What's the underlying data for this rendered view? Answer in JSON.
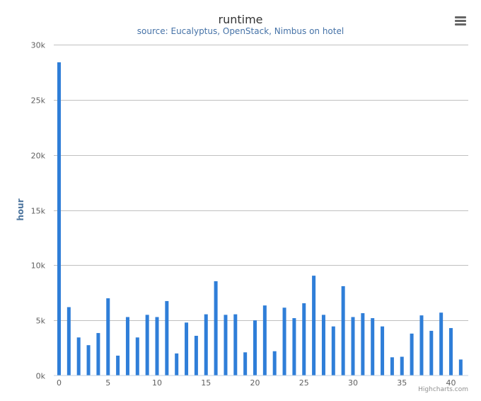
{
  "chart_data": {
    "type": "bar",
    "title": "runtime",
    "subtitle": "source: Eucalyptus, OpenStack, Nimbus on hotel",
    "xlabel": "",
    "ylabel": "hour",
    "x": [
      0,
      1,
      2,
      3,
      4,
      5,
      6,
      7,
      8,
      9,
      10,
      11,
      12,
      13,
      14,
      15,
      16,
      17,
      18,
      19,
      20,
      21,
      22,
      23,
      24,
      25,
      26,
      27,
      28,
      29,
      30,
      31,
      32,
      33,
      34,
      35,
      36,
      37,
      38,
      39,
      40,
      41
    ],
    "values": [
      28400,
      6200,
      3450,
      2750,
      3850,
      7000,
      1800,
      5300,
      3450,
      5500,
      5300,
      6750,
      2000,
      4800,
      3600,
      5550,
      8550,
      5500,
      5550,
      2100,
      5000,
      6350,
      2200,
      6150,
      5200,
      6550,
      9050,
      5500,
      4450,
      8100,
      5300,
      5650,
      5200,
      4450,
      1650,
      1700,
      3800,
      5450,
      4050,
      5700,
      4300,
      1450
    ],
    "ylim": [
      0,
      30000
    ],
    "yticks": [
      0,
      5000,
      10000,
      15000,
      20000,
      25000,
      30000
    ],
    "ytick_labels": [
      "0k",
      "5k",
      "10k",
      "15k",
      "20k",
      "25k",
      "30k"
    ],
    "xticks": [
      0,
      5,
      10,
      15,
      20,
      25,
      30,
      35,
      40
    ],
    "xtick_labels": [
      "0",
      "5",
      "10",
      "15",
      "20",
      "25",
      "30",
      "35",
      "40"
    ],
    "grid": true,
    "legend": "none",
    "bar_color": "#2f7ed8"
  },
  "credits": "Highcharts.com",
  "menu_icon": "hamburger-menu-icon"
}
